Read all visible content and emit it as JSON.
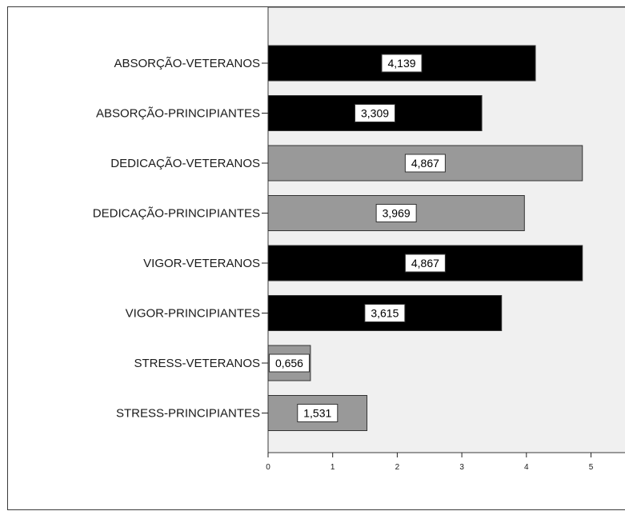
{
  "chart_data": {
    "type": "bar",
    "orientation": "horizontal",
    "categories": [
      "ABSORÇÃO-VETERANOS",
      "ABSORÇÃO-PRINCIPIANTES",
      "DEDICAÇÃO-VETERANOS",
      "DEDICAÇÃO-PRINCIPIANTES",
      "VIGOR-VETERANOS",
      "VIGOR-PRINCIPIANTES",
      "STRESS-VETERANOS",
      "STRESS-PRINCIPIANTES"
    ],
    "values": [
      4.139,
      3.309,
      4.867,
      3.969,
      4.867,
      3.615,
      0.656,
      1.531
    ],
    "data_labels": [
      "4,139",
      "3,309",
      "4,867",
      "3,969",
      "4,867",
      "3,615",
      "0,656",
      "1,531"
    ],
    "bar_colors": [
      "#000000",
      "#000000",
      "#999999",
      "#999999",
      "#000000",
      "#000000",
      "#999999",
      "#999999"
    ],
    "xlim": [
      0,
      5.5
    ],
    "xticks": [
      0,
      1,
      2,
      3,
      4,
      5
    ],
    "xtick_labels": [
      "0",
      "1",
      "2",
      "3",
      "4",
      "5"
    ],
    "plot_background": "#f0f0f0",
    "grid": false,
    "title": "",
    "xlabel": "",
    "ylabel": ""
  }
}
